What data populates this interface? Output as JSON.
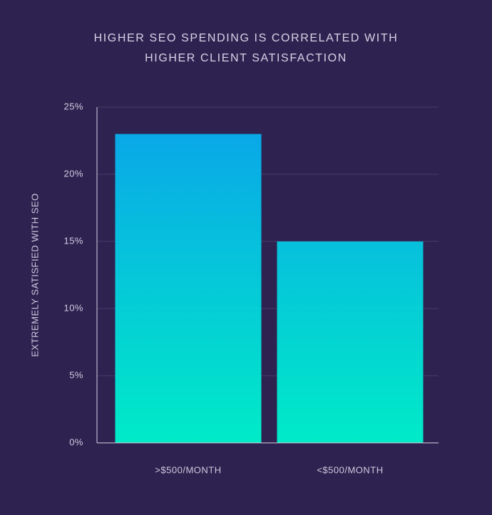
{
  "chart_data": {
    "type": "bar",
    "title": "HIGHER SEO SPENDING IS CORRELATED WITH HIGHER CLIENT SATISFACTION",
    "y_label": "EXTREMELY SATISFIED WITH SEO",
    "categories": [
      ">$500/MONTH",
      "<$500/MONTH"
    ],
    "values": [
      23,
      15
    ],
    "gradient": [
      "#0aa2ea",
      "#00ebc8"
    ],
    "ylim": [
      0,
      25
    ],
    "yticks": [
      {
        "value": 0,
        "label": "0%"
      },
      {
        "value": 5,
        "label": "5%"
      },
      {
        "value": 10,
        "label": "10%"
      },
      {
        "value": 15,
        "label": "15%"
      },
      {
        "value": 20,
        "label": "20%"
      },
      {
        "value": 25,
        "label": "25%"
      }
    ],
    "grid": true
  }
}
